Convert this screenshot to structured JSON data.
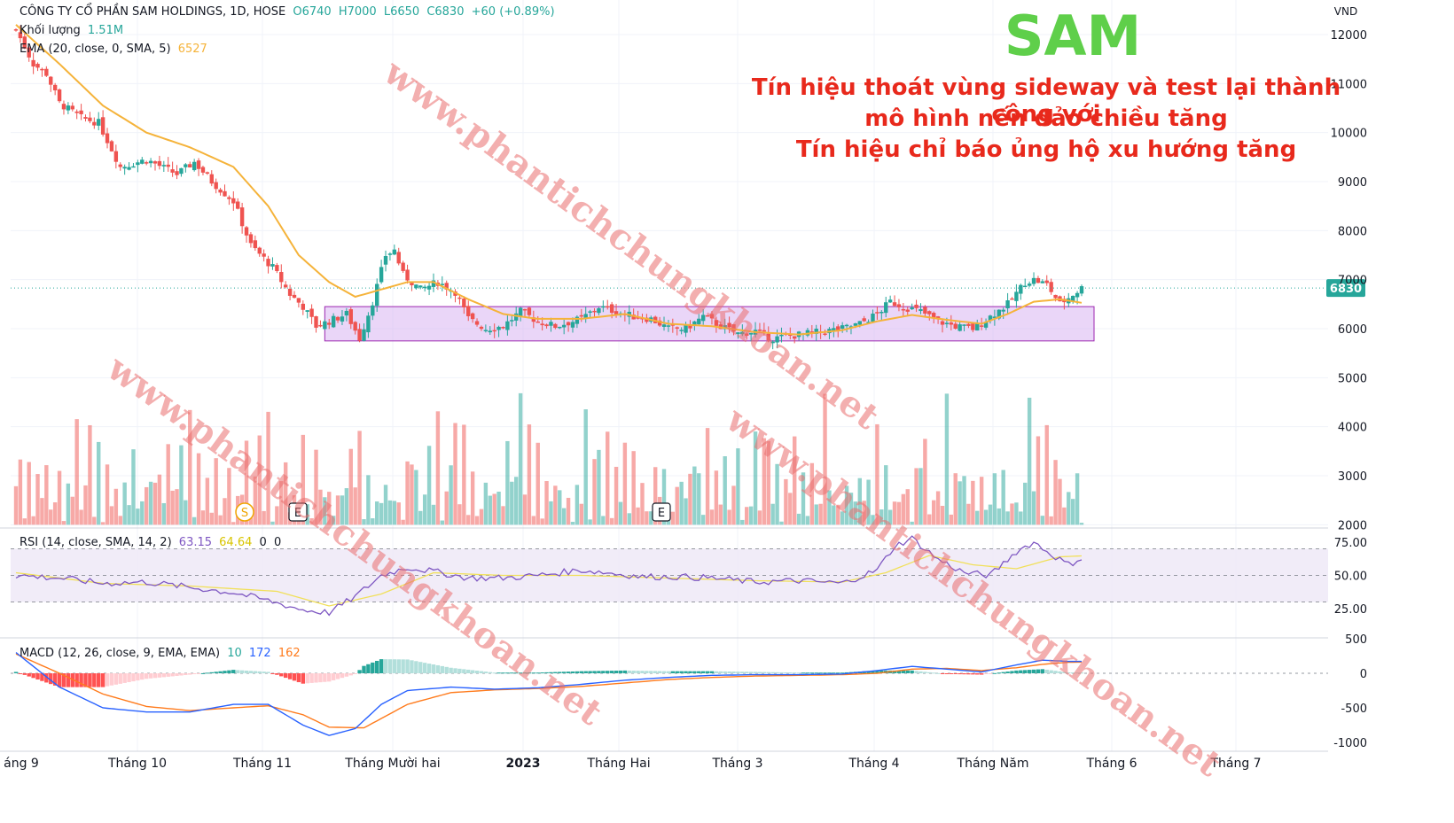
{
  "header": {
    "symbol_line": "CÔNG TY CỔ PHẦN SAM HOLDINGS, 1D, HOSE",
    "ohlc": [
      "O6740",
      "H7000",
      "L6650",
      "C6830"
    ],
    "change": "+60 (+0.89%)",
    "volume_label": "Khối lượng",
    "volume_value": "1.51M",
    "ema_label": "EMA (20, close, 0, SMA, 5)",
    "ema_value": "6527"
  },
  "annotation": {
    "ticker": "SAM",
    "lines": [
      "Tín hiệu thoát vùng sideway và test lại thành công với",
      "mô hình nến đảo chiều tăng",
      "Tín hiệu chỉ báo ủng hộ xu hướng tăng"
    ]
  },
  "watermark": "www.phantichchungkhoan.net",
  "colors": {
    "up": "#26a69a",
    "down": "#ef5350",
    "ema": "#f5b33a",
    "rsi": "#7e57c2",
    "rsi_ma": "#f1e05a",
    "macd": "#2962ff",
    "signal": "#ff7b1c",
    "sideway_box": "#d8b4f2",
    "last_price_bg": "#26a69a"
  },
  "price_axis": {
    "unit": "VND",
    "ticks": [
      "12000",
      "11000",
      "10000",
      "9000",
      "8000",
      "7000",
      "6000",
      "5000",
      "4000",
      "3000",
      "2000"
    ],
    "last_price": "6830"
  },
  "rsi_panel": {
    "label": "RSI (14, close, SMA, 14, 2)",
    "values": [
      "63.15",
      "64.64",
      "0",
      "0"
    ],
    "ticks": [
      "75.00",
      "50.00",
      "25.00"
    ]
  },
  "macd_panel": {
    "label": "MACD (12, 26, close, 9, EMA, EMA)",
    "values": [
      "10",
      "172",
      "162"
    ],
    "ticks": [
      "500",
      "0",
      "-500",
      "-1000"
    ]
  },
  "time_axis": [
    "áng 9",
    "Tháng 10",
    "Tháng 11",
    "Tháng Mười hai",
    "2023",
    "Tháng Hai",
    "Tháng 3",
    "Tháng 4",
    "Tháng Năm",
    "Tháng 6",
    "Tháng 7"
  ],
  "event_badges": [
    "S",
    "E",
    "E"
  ],
  "chart_data": {
    "type": "candlestick",
    "title": "CÔNG TY CỔ PHẦN SAM HOLDINGS, 1D, HOSE",
    "ylim": [
      2000,
      12200
    ],
    "price_keypoints": [
      [
        0,
        12100
      ],
      [
        4,
        11400
      ],
      [
        7,
        11200
      ],
      [
        10,
        10600
      ],
      [
        15,
        10300
      ],
      [
        19,
        10200
      ],
      [
        24,
        9300
      ],
      [
        30,
        9450
      ],
      [
        37,
        9150
      ],
      [
        41,
        9400
      ],
      [
        45,
        9000
      ],
      [
        50,
        8600
      ],
      [
        54,
        7700
      ],
      [
        59,
        7250
      ],
      [
        63,
        6700
      ],
      [
        66,
        6450
      ],
      [
        69,
        6050
      ],
      [
        72,
        6150
      ],
      [
        76,
        6300
      ],
      [
        79,
        5800
      ],
      [
        82,
        6550
      ],
      [
        85,
        7500
      ],
      [
        87,
        7600
      ],
      [
        89,
        7100
      ],
      [
        93,
        6800
      ],
      [
        97,
        6950
      ],
      [
        101,
        6750
      ],
      [
        104,
        6200
      ],
      [
        108,
        6000
      ],
      [
        112,
        6050
      ],
      [
        116,
        6350
      ],
      [
        120,
        6150
      ],
      [
        124,
        6050
      ],
      [
        130,
        6200
      ],
      [
        134,
        6450
      ],
      [
        138,
        6350
      ],
      [
        142,
        6250
      ],
      [
        146,
        6200
      ],
      [
        150,
        6000
      ],
      [
        154,
        6000
      ],
      [
        158,
        6250
      ],
      [
        162,
        6050
      ],
      [
        166,
        5900
      ],
      [
        170,
        5950
      ],
      [
        174,
        5800
      ],
      [
        178,
        5850
      ],
      [
        182,
        5900
      ],
      [
        186,
        5950
      ],
      [
        190,
        6000
      ],
      [
        194,
        6100
      ],
      [
        198,
        6300
      ],
      [
        201,
        6550
      ],
      [
        204,
        6450
      ],
      [
        208,
        6350
      ],
      [
        212,
        6150
      ],
      [
        216,
        6050
      ],
      [
        220,
        6000
      ],
      [
        224,
        6250
      ],
      [
        228,
        6500
      ],
      [
        232,
        6950
      ],
      [
        234,
        7000
      ],
      [
        237,
        6900
      ],
      [
        240,
        6500
      ],
      [
        243,
        6700
      ],
      [
        245,
        6830
      ]
    ],
    "ema_keypoints": [
      [
        0,
        12200
      ],
      [
        10,
        11400
      ],
      [
        20,
        10550
      ],
      [
        30,
        10000
      ],
      [
        40,
        9700
      ],
      [
        50,
        9300
      ],
      [
        58,
        8500
      ],
      [
        65,
        7500
      ],
      [
        72,
        6950
      ],
      [
        78,
        6650
      ],
      [
        84,
        6800
      ],
      [
        90,
        6950
      ],
      [
        96,
        6950
      ],
      [
        104,
        6600
      ],
      [
        112,
        6300
      ],
      [
        120,
        6200
      ],
      [
        130,
        6200
      ],
      [
        140,
        6300
      ],
      [
        150,
        6100
      ],
      [
        160,
        6050
      ],
      [
        170,
        5930
      ],
      [
        180,
        5880
      ],
      [
        190,
        5970
      ],
      [
        198,
        6150
      ],
      [
        206,
        6280
      ],
      [
        214,
        6180
      ],
      [
        222,
        6100
      ],
      [
        228,
        6300
      ],
      [
        234,
        6550
      ],
      [
        240,
        6600
      ],
      [
        245,
        6527
      ]
    ],
    "volume_sample": [
      3300,
      4300,
      2200,
      4000,
      2500,
      3500,
      2900,
      3400,
      2700,
      2800,
      3800,
      2100,
      3400,
      3300,
      4300,
      2400,
      3900,
      4000,
      2500,
      4700,
      2200,
      3300,
      3200,
      4000,
      2600,
      4400,
      2700,
      3800,
      2400,
      2500,
      4800,
      2900,
      3100,
      3000,
      2500,
      3800,
      2900,
      3200,
      4600
    ],
    "rsi_keypoints": [
      [
        0,
        50
      ],
      [
        10,
        48
      ],
      [
        20,
        44
      ],
      [
        30,
        45
      ],
      [
        40,
        41
      ],
      [
        50,
        37
      ],
      [
        58,
        31
      ],
      [
        66,
        24
      ],
      [
        72,
        22
      ],
      [
        78,
        34
      ],
      [
        84,
        50
      ],
      [
        90,
        56
      ],
      [
        96,
        53
      ],
      [
        104,
        48
      ],
      [
        112,
        48
      ],
      [
        120,
        50
      ],
      [
        130,
        54
      ],
      [
        136,
        52
      ],
      [
        144,
        49
      ],
      [
        152,
        49
      ],
      [
        160,
        48
      ],
      [
        170,
        45
      ],
      [
        180,
        46
      ],
      [
        190,
        44
      ],
      [
        198,
        54
      ],
      [
        202,
        72
      ],
      [
        206,
        78
      ],
      [
        212,
        62
      ],
      [
        218,
        52
      ],
      [
        224,
        50
      ],
      [
        230,
        68
      ],
      [
        234,
        75
      ],
      [
        238,
        66
      ],
      [
        242,
        58
      ],
      [
        245,
        63.15
      ]
    ],
    "rsi_ma_keypoints": [
      [
        0,
        52
      ],
      [
        20,
        44
      ],
      [
        40,
        42
      ],
      [
        60,
        38
      ],
      [
        72,
        27
      ],
      [
        84,
        36
      ],
      [
        96,
        52
      ],
      [
        112,
        50
      ],
      [
        130,
        50
      ],
      [
        150,
        48
      ],
      [
        170,
        46
      ],
      [
        190,
        45
      ],
      [
        200,
        52
      ],
      [
        210,
        65
      ],
      [
        220,
        58
      ],
      [
        230,
        55
      ],
      [
        240,
        64
      ],
      [
        245,
        64.64
      ]
    ],
    "macd_keypoints": [
      [
        0,
        300
      ],
      [
        10,
        -200
      ],
      [
        20,
        -500
      ],
      [
        30,
        -560
      ],
      [
        40,
        -560
      ],
      [
        50,
        -450
      ],
      [
        58,
        -450
      ],
      [
        66,
        -750
      ],
      [
        72,
        -900
      ],
      [
        78,
        -800
      ],
      [
        84,
        -450
      ],
      [
        90,
        -250
      ],
      [
        100,
        -200
      ],
      [
        110,
        -230
      ],
      [
        120,
        -210
      ],
      [
        130,
        -160
      ],
      [
        140,
        -100
      ],
      [
        150,
        -60
      ],
      [
        160,
        -30
      ],
      [
        170,
        -20
      ],
      [
        180,
        -20
      ],
      [
        190,
        -10
      ],
      [
        198,
        40
      ],
      [
        206,
        100
      ],
      [
        214,
        60
      ],
      [
        222,
        20
      ],
      [
        230,
        120
      ],
      [
        236,
        190
      ],
      [
        242,
        172
      ],
      [
        245,
        172
      ]
    ],
    "signal_keypoints": [
      [
        0,
        280
      ],
      [
        10,
        0
      ],
      [
        20,
        -300
      ],
      [
        30,
        -480
      ],
      [
        40,
        -540
      ],
      [
        50,
        -500
      ],
      [
        58,
        -470
      ],
      [
        66,
        -600
      ],
      [
        72,
        -780
      ],
      [
        80,
        -790
      ],
      [
        90,
        -450
      ],
      [
        100,
        -280
      ],
      [
        110,
        -240
      ],
      [
        120,
        -220
      ],
      [
        130,
        -190
      ],
      [
        140,
        -140
      ],
      [
        150,
        -90
      ],
      [
        160,
        -60
      ],
      [
        170,
        -40
      ],
      [
        180,
        -30
      ],
      [
        190,
        -20
      ],
      [
        198,
        0
      ],
      [
        206,
        60
      ],
      [
        214,
        70
      ],
      [
        222,
        40
      ],
      [
        230,
        80
      ],
      [
        236,
        130
      ],
      [
        242,
        160
      ],
      [
        245,
        162
      ]
    ],
    "sideway_zone": {
      "from_bar": 71,
      "to_bar": 245,
      "low": 5750,
      "high": 6450
    }
  }
}
